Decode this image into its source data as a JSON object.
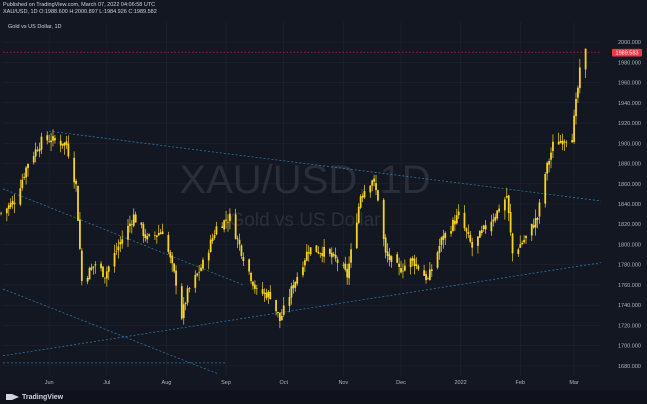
{
  "header": {
    "line1": "Published on TradingView.com, March 07, 2022 04:06:58 UTC",
    "line2": "XAU/USD, 1D  O:1988.600 H:2000.897 L:1984.926 C:1989.582"
  },
  "symbol_name": "Gold vs US Dollar, 1D",
  "watermark": {
    "symbol": "XAU/USD, 1D",
    "name": "Gold vs US Dollar"
  },
  "footer": {
    "brand": "TradingView"
  },
  "colors": {
    "background": "#131722",
    "candle": "#f5d327",
    "trendline": "#2f7fb5",
    "price_label": "#f23645",
    "grid": "#1f2330"
  },
  "chart_data": {
    "type": "candlestick",
    "last_price": "1989.583",
    "ylim": [
      1670,
      2010
    ],
    "y_ticks": [
      "2000.000",
      "1980.000",
      "1960.000",
      "1940.000",
      "1920.000",
      "1900.000",
      "1880.000",
      "1860.000",
      "1840.000",
      "1820.000",
      "1800.000",
      "1780.000",
      "1760.000",
      "1740.000",
      "1720.000",
      "1700.000",
      "1680.000"
    ],
    "x_ticks": [
      "Jun",
      "Jul",
      "Aug",
      "Sep",
      "Oct",
      "Nov",
      "Dec",
      "2022",
      "Feb",
      "Mar"
    ],
    "x_range": [
      "2021-05-08",
      "2022-03-15"
    ],
    "tick_dates": [
      "2021-06-01",
      "2021-07-01",
      "2021-08-01",
      "2021-09-01",
      "2021-10-01",
      "2021-11-01",
      "2021-12-01",
      "2022-01-01",
      "2022-02-01",
      "2022-03-01"
    ],
    "close_path": [
      [
        "2021-05-07",
        1831
      ],
      [
        "2021-05-14",
        1843
      ],
      [
        "2021-05-21",
        1881
      ],
      [
        "2021-05-28",
        1902
      ],
      [
        "2021-06-01",
        1904
      ],
      [
        "2021-06-10",
        1899
      ],
      [
        "2021-06-15",
        1858
      ],
      [
        "2021-06-18",
        1764
      ],
      [
        "2021-06-25",
        1781
      ],
      [
        "2021-06-30",
        1770
      ],
      [
        "2021-07-08",
        1802
      ],
      [
        "2021-07-15",
        1828
      ],
      [
        "2021-07-22",
        1805
      ],
      [
        "2021-07-30",
        1814
      ],
      [
        "2021-08-06",
        1763
      ],
      [
        "2021-08-09",
        1729
      ],
      [
        "2021-08-12",
        1752
      ],
      [
        "2021-08-20",
        1781
      ],
      [
        "2021-08-27",
        1817
      ],
      [
        "2021-09-03",
        1827
      ],
      [
        "2021-09-10",
        1788
      ],
      [
        "2021-09-17",
        1753
      ],
      [
        "2021-09-24",
        1750
      ],
      [
        "2021-09-29",
        1725
      ],
      [
        "2021-10-06",
        1760
      ],
      [
        "2021-10-14",
        1796
      ],
      [
        "2021-10-22",
        1793
      ],
      [
        "2021-10-29",
        1783
      ],
      [
        "2021-11-03",
        1769
      ],
      [
        "2021-11-10",
        1849
      ],
      [
        "2021-11-16",
        1865
      ],
      [
        "2021-11-19",
        1846
      ],
      [
        "2021-11-23",
        1790
      ],
      [
        "2021-11-30",
        1775
      ],
      [
        "2021-12-07",
        1785
      ],
      [
        "2021-12-15",
        1765
      ],
      [
        "2021-12-22",
        1804
      ],
      [
        "2021-12-31",
        1829
      ],
      [
        "2022-01-07",
        1797
      ],
      [
        "2022-01-14",
        1817
      ],
      [
        "2022-01-21",
        1835
      ],
      [
        "2022-01-25",
        1848
      ],
      [
        "2022-01-28",
        1791
      ],
      [
        "2022-02-04",
        1807
      ],
      [
        "2022-02-10",
        1827
      ],
      [
        "2022-02-14",
        1870
      ],
      [
        "2022-02-18",
        1898
      ],
      [
        "2022-02-24",
        1905
      ],
      [
        "2022-02-28",
        1908
      ],
      [
        "2022-03-04",
        1970
      ],
      [
        "2022-03-07",
        1990
      ]
    ],
    "trendlines": [
      {
        "from": [
          "2021-06-01",
          1912
        ],
        "to": [
          "2022-03-15",
          1843
        ],
        "style": "dotted"
      },
      {
        "from": [
          "2021-05-08",
          1690
        ],
        "to": [
          "2022-03-15",
          1782
        ],
        "style": "dotted"
      },
      {
        "from": [
          "2021-05-08",
          1855
        ],
        "to": [
          "2021-09-10",
          1760
        ],
        "style": "dotted"
      },
      {
        "from": [
          "2021-05-08",
          1756
        ],
        "to": [
          "2021-08-28",
          1672
        ],
        "style": "dotted"
      },
      {
        "from": [
          "2021-05-08",
          1683
        ],
        "to": [
          "2021-09-01",
          1683
        ],
        "style": "dotted"
      },
      {
        "from": [
          "2021-05-08",
          1990
        ],
        "to": [
          "2022-03-15",
          1990
        ],
        "style": "dotted-red"
      }
    ]
  }
}
